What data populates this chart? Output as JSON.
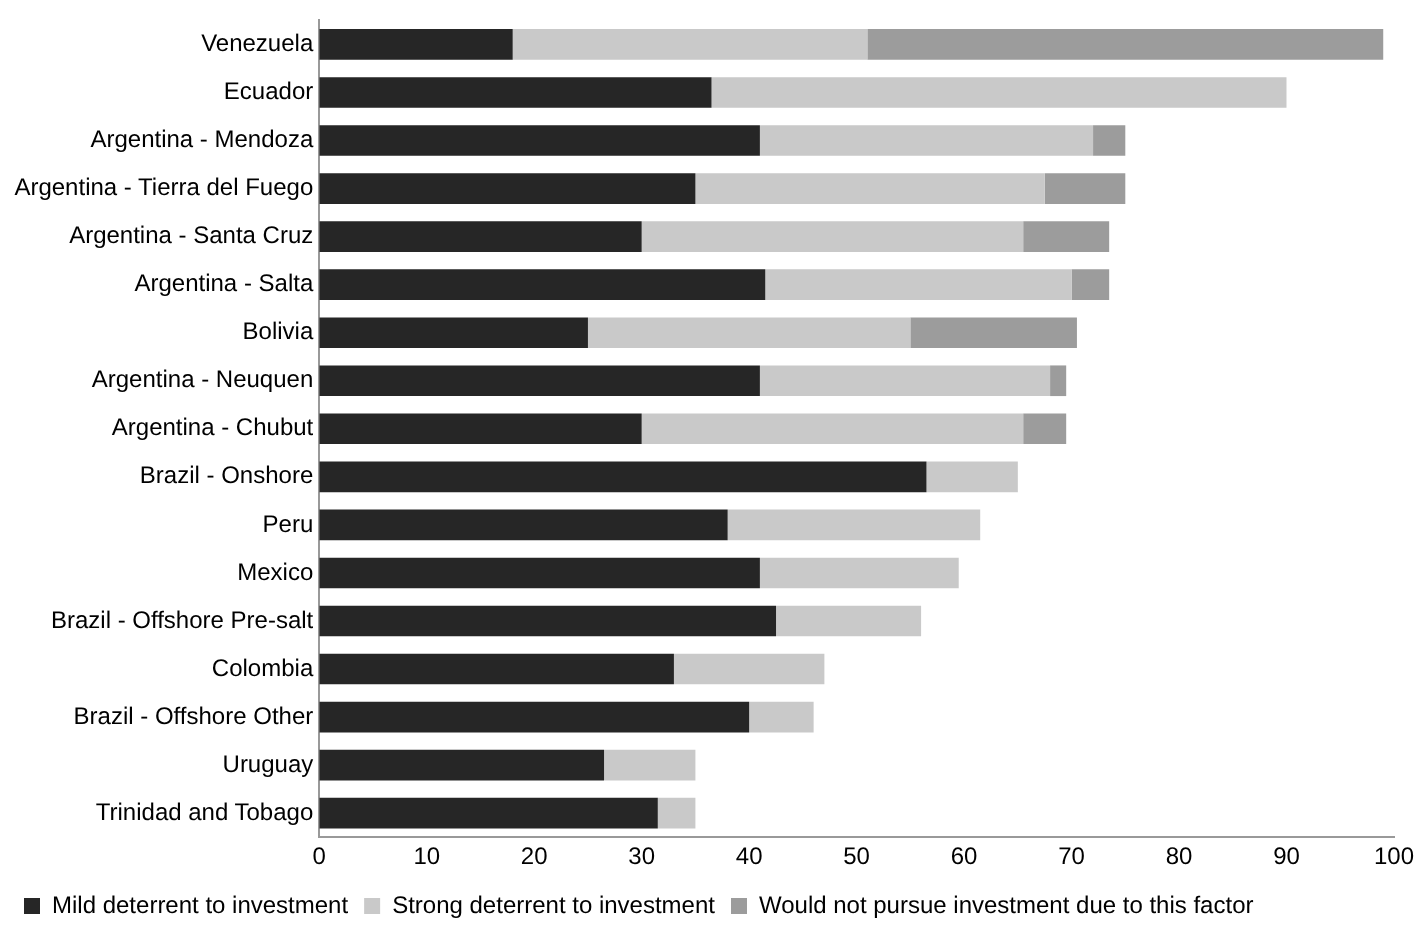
{
  "chart_data": {
    "type": "bar",
    "orientation": "horizontal",
    "stacked": true,
    "categories": [
      "Venezuela",
      "Ecuador",
      "Argentina - Mendoza",
      "Argentina - Tierra del Fuego",
      "Argentina - Santa Cruz",
      "Argentina - Salta",
      "Bolivia",
      "Argentina - Neuquen",
      "Argentina - Chubut",
      "Brazil - Onshore",
      "Peru",
      "Mexico",
      "Brazil - Offshore Pre-salt",
      "Colombia",
      "Brazil - Offshore Other",
      "Uruguay",
      "Trinidad and Tobago"
    ],
    "series": [
      {
        "name": "Mild deterrent to investment",
        "color": "#262626",
        "values": [
          18,
          36.5,
          41,
          35,
          30,
          41.5,
          25,
          41,
          30,
          56.5,
          38,
          41,
          42.5,
          33,
          40,
          26.5,
          31.5
        ]
      },
      {
        "name": "Strong deterrent to investment",
        "color": "#c9c9c9",
        "values": [
          33,
          53.5,
          31,
          32.5,
          35.5,
          28.5,
          30,
          27,
          35.5,
          8.5,
          23.5,
          18.5,
          13.5,
          14,
          6,
          8.5,
          3.5
        ]
      },
      {
        "name": "Would not pursue investment due to this factor",
        "color": "#9c9c9c",
        "values": [
          48,
          0,
          3,
          7.5,
          8,
          3.5,
          15.5,
          1.5,
          4,
          0,
          0,
          0,
          0,
          0,
          0,
          0,
          0
        ]
      }
    ],
    "xlim": [
      0,
      100
    ],
    "xticks": [
      0,
      10,
      20,
      30,
      40,
      50,
      60,
      70,
      80,
      90,
      100
    ],
    "grid": false,
    "legend": "bottom"
  }
}
